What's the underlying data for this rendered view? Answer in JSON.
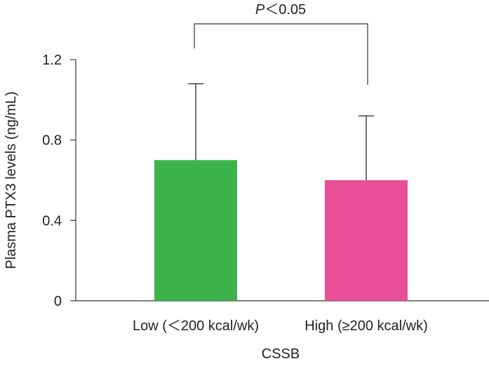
{
  "chart_data": {
    "type": "bar",
    "title": "",
    "xlabel": "CSSB",
    "ylabel": "Plasma PTX3 levels (ng/mL)",
    "ylim": [
      0,
      1.2
    ],
    "yticks": [
      0,
      0.4,
      0.8,
      1.2
    ],
    "ytick_labels": [
      "0",
      "0.4",
      "0.8",
      "1.2"
    ],
    "categories": [
      "Low (＜200 kcal/wk)",
      "High (≥200 kcal/wk)"
    ],
    "values": [
      0.7,
      0.6
    ],
    "errors": [
      0.38,
      0.32
    ],
    "colors": [
      "#3cb34a",
      "#e94f96"
    ],
    "significance": {
      "p_italic": "P",
      "rest": "＜0.05"
    }
  }
}
